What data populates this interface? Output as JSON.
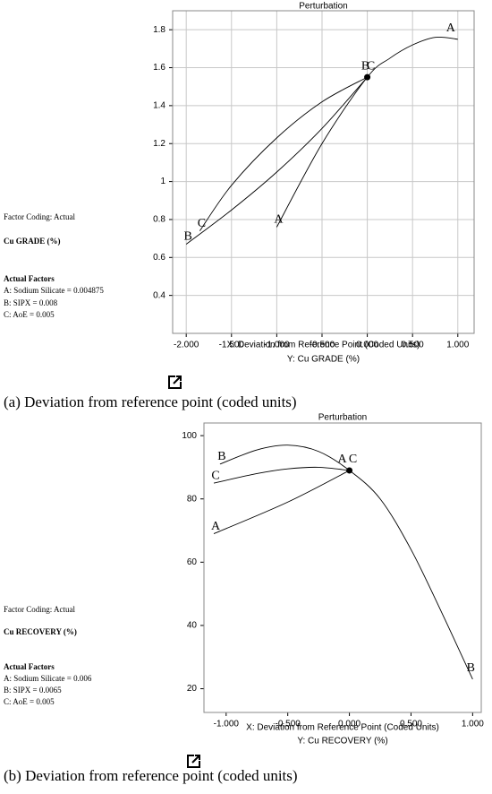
{
  "chart_data": [
    {
      "type": "line",
      "title": "Perturbation",
      "xlabel": "X: Deviation from Reference Point (Coded Units)",
      "ylabel": "Y: Cu GRADE (%)",
      "xlim": [
        -2.15,
        1.18
      ],
      "ylim": [
        0.2,
        1.9
      ],
      "xticks": [
        {
          "value": -2,
          "label": "-2.000"
        },
        {
          "value": -1.5,
          "label": "-1.500"
        },
        {
          "value": -1,
          "label": "-1.000"
        },
        {
          "value": -0.5,
          "label": "-0.500"
        },
        {
          "value": 0,
          "label": "0.000"
        },
        {
          "value": 0.5,
          "label": "0.500"
        },
        {
          "value": 1,
          "label": "1.000"
        }
      ],
      "yticks": [
        0.4,
        0.6,
        0.8,
        1,
        1.2,
        1.4,
        1.6,
        1.8
      ],
      "grid": true,
      "series": [
        {
          "name": "A",
          "color": "#000000",
          "x": [
            -1,
            -0.5,
            0,
            0.25,
            0.5,
            0.75,
            1
          ],
          "values": [
            0.76,
            1.2,
            1.55,
            1.65,
            1.72,
            1.76,
            1.75
          ]
        },
        {
          "name": "B",
          "color": "#000000",
          "x": [
            -2,
            -1.5,
            -1,
            -0.5,
            0
          ],
          "values": [
            0.67,
            0.85,
            1.05,
            1.28,
            1.55
          ]
        },
        {
          "name": "C",
          "color": "#000000",
          "x": [
            -1.85,
            -1.5,
            -1,
            -0.5,
            0
          ],
          "values": [
            0.74,
            0.98,
            1.23,
            1.42,
            1.55
          ]
        }
      ],
      "reference_point": {
        "x": 0,
        "y": 1.55
      },
      "info": {
        "coding": "Factor Coding: Actual",
        "response": "Cu GRADE (%)",
        "factors_title": "Actual Factors",
        "factors": [
          "A: Sodium Silicate  = 0.004875",
          "B: SIPX = 0.008",
          "C: AoE = 0.005"
        ]
      },
      "caption": "(a) Deviation from reference point (coded units)"
    },
    {
      "type": "line",
      "title": "Perturbation",
      "xlabel": "X: Deviation from Reference Point (Coded Units)",
      "ylabel": "Y: Cu RECOVERY (%)",
      "xlim": [
        -1.18,
        1.07
      ],
      "ylim": [
        12.5,
        104
      ],
      "xticks": [
        {
          "value": -1,
          "label": "-1.000"
        },
        {
          "value": -0.5,
          "label": "-0.500"
        },
        {
          "value": 0,
          "label": "0.000"
        },
        {
          "value": 0.5,
          "label": "0.500"
        },
        {
          "value": 1,
          "label": "1.000"
        }
      ],
      "yticks": [
        20,
        40,
        60,
        80,
        100
      ],
      "grid": false,
      "series": [
        {
          "name": "A",
          "color": "#000000",
          "x": [
            -1.1,
            -0.5,
            0
          ],
          "values": [
            69,
            79,
            89
          ]
        },
        {
          "name": "B",
          "color": "#000000",
          "x": [
            -1.05,
            -0.75,
            -0.5,
            -0.25,
            0,
            0.25,
            0.5,
            0.75,
            1
          ],
          "values": [
            91,
            95.5,
            97,
            95,
            89,
            80,
            64,
            44,
            23
          ]
        },
        {
          "name": "C",
          "color": "#000000",
          "x": [
            -1.1,
            -0.75,
            -0.5,
            -0.25,
            0
          ],
          "values": [
            85,
            88,
            89.5,
            90,
            89
          ]
        }
      ],
      "reference_point": {
        "x": 0,
        "y": 89
      },
      "info": {
        "coding": "Factor Coding: Actual",
        "response": "Cu RECOVERY (%)",
        "factors_title": "Actual Factors",
        "factors": [
          "A: Sodium Silicate  = 0.006",
          "B: SIPX = 0.0065",
          "C: AoE = 0.005"
        ]
      },
      "caption": "(b) Deviation from reference point (coded units)"
    }
  ]
}
